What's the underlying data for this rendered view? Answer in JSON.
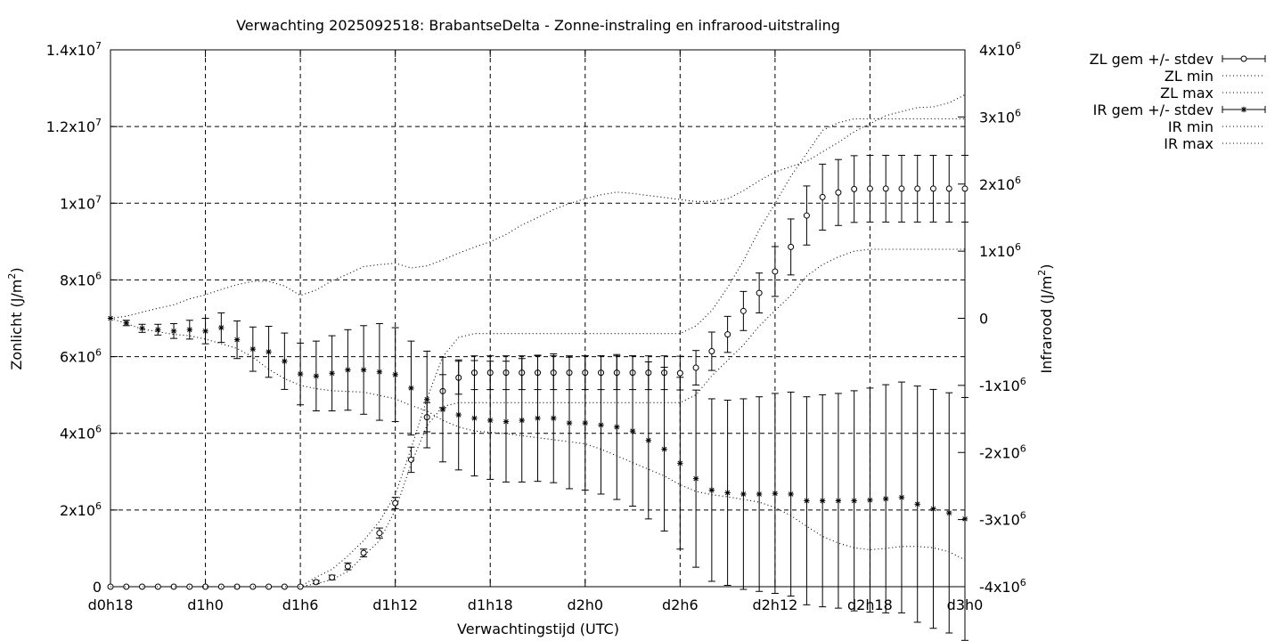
{
  "chart_data": {
    "type": "line",
    "title": "Verwachting 2025092518: BrabantseDelta - Zonne-instraling en infrarood-uitstraling",
    "xlabel": "Verwachtingstijd (UTC)",
    "ylabel_left": {
      "base": "Zonlicht (J/m",
      "sup": "2",
      "close": ")"
    },
    "ylabel_right": {
      "base": "Infrarood (J/m",
      "sup": "2",
      "close": ")"
    },
    "x_range": [
      0,
      54
    ],
    "x_ticks": [
      {
        "x": 0,
        "label": "d0h18"
      },
      {
        "x": 6,
        "label": "d1h0"
      },
      {
        "x": 12,
        "label": "d1h6"
      },
      {
        "x": 18,
        "label": "d1h12"
      },
      {
        "x": 24,
        "label": "d1h18"
      },
      {
        "x": 30,
        "label": "d2h0"
      },
      {
        "x": 36,
        "label": "d2h6"
      },
      {
        "x": 42,
        "label": "d2h12"
      },
      {
        "x": 48,
        "label": "d2h18"
      },
      {
        "x": 54,
        "label": "d3h0"
      }
    ],
    "y_left_range": [
      0,
      14000000
    ],
    "y_left_ticks": [
      {
        "v": 0,
        "label": "0",
        "exp": ""
      },
      {
        "v": 2000000,
        "label": "2x10",
        "exp": "6"
      },
      {
        "v": 4000000,
        "label": "4x10",
        "exp": "6"
      },
      {
        "v": 6000000,
        "label": "6x10",
        "exp": "6"
      },
      {
        "v": 8000000,
        "label": "8x10",
        "exp": "6"
      },
      {
        "v": 10000000,
        "label": "1x10",
        "exp": "7"
      },
      {
        "v": 12000000,
        "label": "1.2x10",
        "exp": "7"
      },
      {
        "v": 14000000,
        "label": "1.4x10",
        "exp": "7"
      }
    ],
    "y_right_range": [
      -4000000,
      4000000
    ],
    "y_right_ticks": [
      {
        "v": -4000000,
        "label": "-4x10",
        "exp": "6"
      },
      {
        "v": -3000000,
        "label": "-3x10",
        "exp": "6"
      },
      {
        "v": -2000000,
        "label": "-2x10",
        "exp": "6"
      },
      {
        "v": -1000000,
        "label": "-1x10",
        "exp": "6"
      },
      {
        "v": 0,
        "label": "0",
        "exp": ""
      },
      {
        "v": 1000000,
        "label": "1x10",
        "exp": "6"
      },
      {
        "v": 2000000,
        "label": "2x10",
        "exp": "6"
      },
      {
        "v": 3000000,
        "label": "3x10",
        "exp": "6"
      },
      {
        "v": 4000000,
        "label": "4x10",
        "exp": "6"
      }
    ],
    "grid": true,
    "legend_position": "top-right outside",
    "x": [
      0,
      1,
      2,
      3,
      4,
      5,
      6,
      7,
      8,
      9,
      10,
      11,
      12,
      13,
      14,
      15,
      16,
      17,
      18,
      19,
      20,
      21,
      22,
      23,
      24,
      25,
      26,
      27,
      28,
      29,
      30,
      31,
      32,
      33,
      34,
      35,
      36,
      37,
      38,
      39,
      40,
      41,
      42,
      43,
      44,
      45,
      46,
      47,
      48,
      49,
      50,
      51,
      52,
      53,
      54
    ],
    "series": [
      {
        "name": "ZL gem +/- stdev",
        "axis": "left",
        "marker": "circle",
        "mean": [
          0,
          0,
          0,
          0,
          0,
          0,
          0,
          0,
          0,
          0,
          0,
          0,
          0,
          120000,
          240000,
          530000,
          880000,
          1400000,
          2180000,
          3310000,
          4420000,
          5100000,
          5450000,
          5580000,
          5580000,
          5580000,
          5580000,
          5580000,
          5580000,
          5580000,
          5580000,
          5580000,
          5580000,
          5580000,
          5580000,
          5580000,
          5570000,
          5710000,
          6140000,
          6580000,
          7190000,
          7660000,
          8220000,
          8860000,
          9680000,
          10160000,
          10280000,
          10370000,
          10380000,
          10380000,
          10380000,
          10380000,
          10380000,
          10380000,
          10380000
        ],
        "sd": [
          0,
          0,
          0,
          0,
          0,
          0,
          0,
          0,
          0,
          0,
          0,
          0,
          0,
          40000,
          60000,
          90000,
          100000,
          130000,
          150000,
          330000,
          380000,
          430000,
          430000,
          440000,
          440000,
          440000,
          440000,
          440000,
          440000,
          440000,
          440000,
          440000,
          440000,
          440000,
          440000,
          440000,
          440000,
          450000,
          500000,
          470000,
          510000,
          520000,
          650000,
          730000,
          770000,
          860000,
          860000,
          870000,
          870000,
          870000,
          870000,
          870000,
          870000,
          870000,
          870000
        ]
      },
      {
        "name": "ZL min",
        "axis": "left",
        "style": "dotted",
        "values": [
          0,
          0,
          0,
          0,
          0,
          0,
          0,
          0,
          0,
          0,
          0,
          0,
          0,
          80000,
          180000,
          400000,
          800000,
          1200000,
          2000000,
          3200000,
          4200000,
          4700000,
          4800000,
          4800000,
          4800000,
          4800000,
          4800000,
          4800000,
          4800000,
          4800000,
          4800000,
          4800000,
          4800000,
          4800000,
          4800000,
          4800000,
          4800000,
          5000000,
          5500000,
          5900000,
          6300000,
          6800000,
          7200000,
          7600000,
          8100000,
          8400000,
          8600000,
          8750000,
          8800000,
          8800000,
          8800000,
          8800000,
          8800000,
          8800000,
          8800000
        ]
      },
      {
        "name": "ZL max",
        "axis": "left",
        "style": "dotted",
        "values": [
          0,
          0,
          0,
          0,
          0,
          0,
          0,
          0,
          0,
          0,
          0,
          0,
          0,
          250000,
          450000,
          800000,
          1200000,
          1700000,
          2400000,
          3600000,
          4900000,
          6000000,
          6500000,
          6600000,
          6600000,
          6600000,
          6600000,
          6600000,
          6600000,
          6600000,
          6600000,
          6600000,
          6600000,
          6600000,
          6600000,
          6600000,
          6600000,
          6800000,
          7200000,
          7800000,
          8500000,
          9300000,
          10000000,
          10700000,
          11300000,
          11900000,
          12100000,
          12200000,
          12200000,
          12200000,
          12200000,
          12200000,
          12200000,
          12200000,
          12200000
        ]
      },
      {
        "name": "IR gem +/- stdev",
        "axis": "right",
        "marker": "star",
        "mean": [
          0,
          -70000,
          -150000,
          -170000,
          -190000,
          -170000,
          -190000,
          -140000,
          -320000,
          -460000,
          -500000,
          -640000,
          -830000,
          -860000,
          -820000,
          -770000,
          -770000,
          -800000,
          -840000,
          -1040000,
          -1210000,
          -1360000,
          -1440000,
          -1490000,
          -1520000,
          -1540000,
          -1520000,
          -1490000,
          -1490000,
          -1560000,
          -1560000,
          -1590000,
          -1620000,
          -1680000,
          -1820000,
          -1950000,
          -2160000,
          -2390000,
          -2560000,
          -2600000,
          -2620000,
          -2620000,
          -2610000,
          -2620000,
          -2720000,
          -2720000,
          -2720000,
          -2720000,
          -2710000,
          -2690000,
          -2670000,
          -2770000,
          -2840000,
          -2900000,
          -2990000
        ],
        "sd": [
          0,
          40000,
          60000,
          80000,
          110000,
          140000,
          190000,
          220000,
          280000,
          330000,
          380000,
          420000,
          460000,
          520000,
          560000,
          600000,
          660000,
          720000,
          700000,
          700000,
          720000,
          780000,
          820000,
          860000,
          880000,
          900000,
          920000,
          940000,
          960000,
          980000,
          1000000,
          1030000,
          1080000,
          1120000,
          1170000,
          1220000,
          1280000,
          1320000,
          1360000,
          1380000,
          1420000,
          1450000,
          1490000,
          1520000,
          1550000,
          1580000,
          1600000,
          1640000,
          1670000,
          1700000,
          1720000,
          1760000,
          1780000,
          1790000,
          1810000
        ]
      },
      {
        "name": "IR min",
        "axis": "right",
        "style": "dotted",
        "values": [
          0,
          -80000,
          -160000,
          -200000,
          -240000,
          -260000,
          -310000,
          -380000,
          -450000,
          -580000,
          -760000,
          -900000,
          -1000000,
          -1050000,
          -1080000,
          -1090000,
          -1100000,
          -1150000,
          -1200000,
          -1300000,
          -1380000,
          -1520000,
          -1620000,
          -1680000,
          -1700000,
          -1720000,
          -1750000,
          -1780000,
          -1810000,
          -1840000,
          -1870000,
          -1950000,
          -2050000,
          -2150000,
          -2250000,
          -2350000,
          -2480000,
          -2580000,
          -2630000,
          -2660000,
          -2700000,
          -2740000,
          -2820000,
          -2940000,
          -3100000,
          -3250000,
          -3350000,
          -3420000,
          -3450000,
          -3430000,
          -3400000,
          -3400000,
          -3420000,
          -3480000,
          -3600000
        ]
      },
      {
        "name": "IR max",
        "axis": "right",
        "style": "dotted",
        "values": [
          0,
          30000,
          90000,
          150000,
          200000,
          290000,
          350000,
          430000,
          500000,
          550000,
          550000,
          480000,
          340000,
          420000,
          560000,
          660000,
          770000,
          800000,
          820000,
          750000,
          780000,
          870000,
          970000,
          1060000,
          1140000,
          1250000,
          1390000,
          1500000,
          1620000,
          1710000,
          1780000,
          1840000,
          1880000,
          1860000,
          1830000,
          1800000,
          1770000,
          1740000,
          1740000,
          1780000,
          1900000,
          2050000,
          2180000,
          2260000,
          2340000,
          2480000,
          2620000,
          2780000,
          2900000,
          3020000,
          3080000,
          3140000,
          3150000,
          3210000,
          3330000
        ]
      }
    ]
  }
}
